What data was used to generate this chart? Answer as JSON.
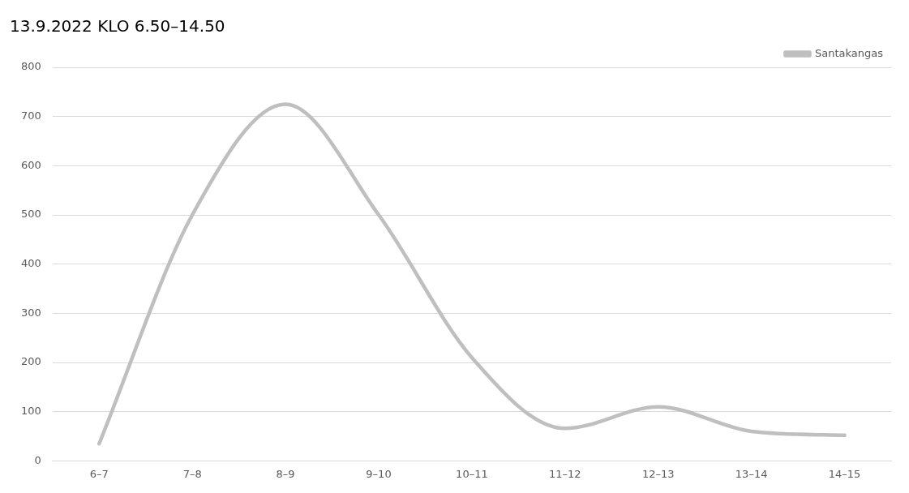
{
  "chart_data": {
    "type": "line",
    "title": "13.9.2022 KLO 6.50–14.50",
    "categories": [
      "6–7",
      "7–8",
      "8–9",
      "9–10",
      "10–11",
      "11–12",
      "12–13",
      "13–14",
      "14–15"
    ],
    "series": [
      {
        "name": "Santakangas",
        "color": "#bfbfbf",
        "values": [
          35,
          500,
          725,
          500,
          210,
          66,
          110,
          60,
          52
        ]
      }
    ],
    "ylim": [
      0,
      800
    ],
    "yticks": [
      0,
      100,
      200,
      300,
      400,
      500,
      600,
      700,
      800
    ],
    "grid": "y",
    "legend": "top right",
    "marker": "none",
    "line_style": "solid"
  }
}
